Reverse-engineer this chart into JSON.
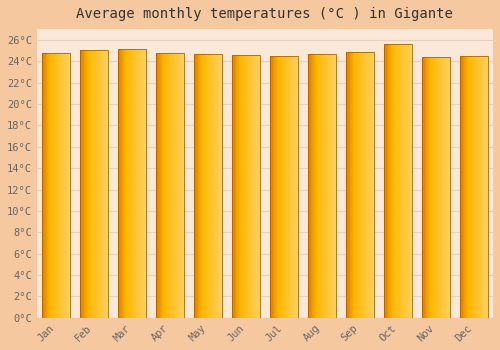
{
  "title": "Average monthly temperatures (°C ) in Gigante",
  "months": [
    "Jan",
    "Feb",
    "Mar",
    "Apr",
    "May",
    "Jun",
    "Jul",
    "Aug",
    "Sep",
    "Oct",
    "Nov",
    "Dec"
  ],
  "temperatures": [
    24.8,
    25.0,
    25.1,
    24.8,
    24.7,
    24.6,
    24.5,
    24.7,
    24.9,
    25.6,
    24.4,
    24.5
  ],
  "bar_color_left": "#E07800",
  "bar_color_center": "#FFB800",
  "bar_color_right": "#FFD060",
  "bar_edge_color": "#AA6600",
  "background_color": "#F5C8A0",
  "plot_bg_color": "#FAE8D8",
  "grid_color": "#E8D0C0",
  "ylim": [
    0,
    27
  ],
  "yticks": [
    0,
    2,
    4,
    6,
    8,
    10,
    12,
    14,
    16,
    18,
    20,
    22,
    24,
    26
  ],
  "title_fontsize": 10,
  "tick_fontsize": 7.5,
  "tick_color": "#666666",
  "font_family": "monospace"
}
